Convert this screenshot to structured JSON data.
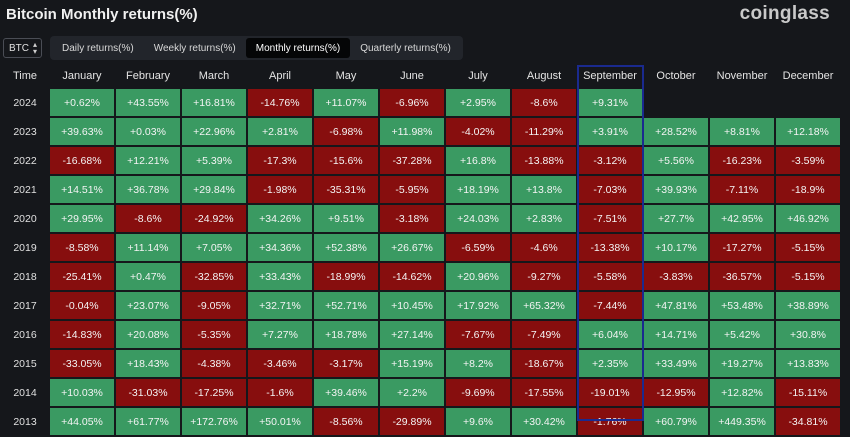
{
  "header": {
    "title": "Bitcoin Monthly returns(%)",
    "brand": "coinglass"
  },
  "coin_select": {
    "value": "BTC"
  },
  "tabs": [
    {
      "label": "Daily returns(%)"
    },
    {
      "label": "Weekly returns(%)"
    },
    {
      "label": "Monthly returns(%)",
      "active": true
    },
    {
      "label": "Quarterly returns(%)"
    }
  ],
  "table": {
    "time_header": "Time",
    "months": [
      "January",
      "February",
      "March",
      "April",
      "May",
      "June",
      "July",
      "August",
      "September",
      "October",
      "November",
      "December"
    ],
    "highlighted_month": "September",
    "colors": {
      "positive": "#3a9a62",
      "negative": "#870e0e",
      "highlight_border": "#1a2a8f"
    },
    "rows": [
      {
        "year": "2024",
        "values": [
          "+0.62%",
          "+43.55%",
          "+16.81%",
          "-14.76%",
          "+11.07%",
          "-6.96%",
          "+2.95%",
          "-8.6%",
          "+9.31%",
          "",
          "",
          ""
        ]
      },
      {
        "year": "2023",
        "values": [
          "+39.63%",
          "+0.03%",
          "+22.96%",
          "+2.81%",
          "-6.98%",
          "+11.98%",
          "-4.02%",
          "-11.29%",
          "+3.91%",
          "+28.52%",
          "+8.81%",
          "+12.18%"
        ]
      },
      {
        "year": "2022",
        "values": [
          "-16.68%",
          "+12.21%",
          "+5.39%",
          "-17.3%",
          "-15.6%",
          "-37.28%",
          "+16.8%",
          "-13.88%",
          "-3.12%",
          "+5.56%",
          "-16.23%",
          "-3.59%"
        ]
      },
      {
        "year": "2021",
        "values": [
          "+14.51%",
          "+36.78%",
          "+29.84%",
          "-1.98%",
          "-35.31%",
          "-5.95%",
          "+18.19%",
          "+13.8%",
          "-7.03%",
          "+39.93%",
          "-7.11%",
          "-18.9%"
        ]
      },
      {
        "year": "2020",
        "values": [
          "+29.95%",
          "-8.6%",
          "-24.92%",
          "+34.26%",
          "+9.51%",
          "-3.18%",
          "+24.03%",
          "+2.83%",
          "-7.51%",
          "+27.7%",
          "+42.95%",
          "+46.92%"
        ]
      },
      {
        "year": "2019",
        "values": [
          "-8.58%",
          "+11.14%",
          "+7.05%",
          "+34.36%",
          "+52.38%",
          "+26.67%",
          "-6.59%",
          "-4.6%",
          "-13.38%",
          "+10.17%",
          "-17.27%",
          "-5.15%"
        ]
      },
      {
        "year": "2018",
        "values": [
          "-25.41%",
          "+0.47%",
          "-32.85%",
          "+33.43%",
          "-18.99%",
          "-14.62%",
          "+20.96%",
          "-9.27%",
          "-5.58%",
          "-3.83%",
          "-36.57%",
          "-5.15%"
        ]
      },
      {
        "year": "2017",
        "values": [
          "-0.04%",
          "+23.07%",
          "-9.05%",
          "+32.71%",
          "+52.71%",
          "+10.45%",
          "+17.92%",
          "+65.32%",
          "-7.44%",
          "+47.81%",
          "+53.48%",
          "+38.89%"
        ]
      },
      {
        "year": "2016",
        "values": [
          "-14.83%",
          "+20.08%",
          "-5.35%",
          "+7.27%",
          "+18.78%",
          "+27.14%",
          "-7.67%",
          "-7.49%",
          "+6.04%",
          "+14.71%",
          "+5.42%",
          "+30.8%"
        ]
      },
      {
        "year": "2015",
        "values": [
          "-33.05%",
          "+18.43%",
          "-4.38%",
          "-3.46%",
          "-3.17%",
          "+15.19%",
          "+8.2%",
          "-18.67%",
          "+2.35%",
          "+33.49%",
          "+19.27%",
          "+13.83%"
        ]
      },
      {
        "year": "2014",
        "values": [
          "+10.03%",
          "-31.03%",
          "-17.25%",
          "-1.6%",
          "+39.46%",
          "+2.2%",
          "-9.69%",
          "-17.55%",
          "-19.01%",
          "-12.95%",
          "+12.82%",
          "-15.11%"
        ]
      },
      {
        "year": "2013",
        "values": [
          "+44.05%",
          "+61.77%",
          "+172.76%",
          "+50.01%",
          "-8.56%",
          "-29.89%",
          "+9.6%",
          "+30.42%",
          "-1.76%",
          "+60.79%",
          "+449.35%",
          "-34.81%"
        ]
      }
    ]
  }
}
